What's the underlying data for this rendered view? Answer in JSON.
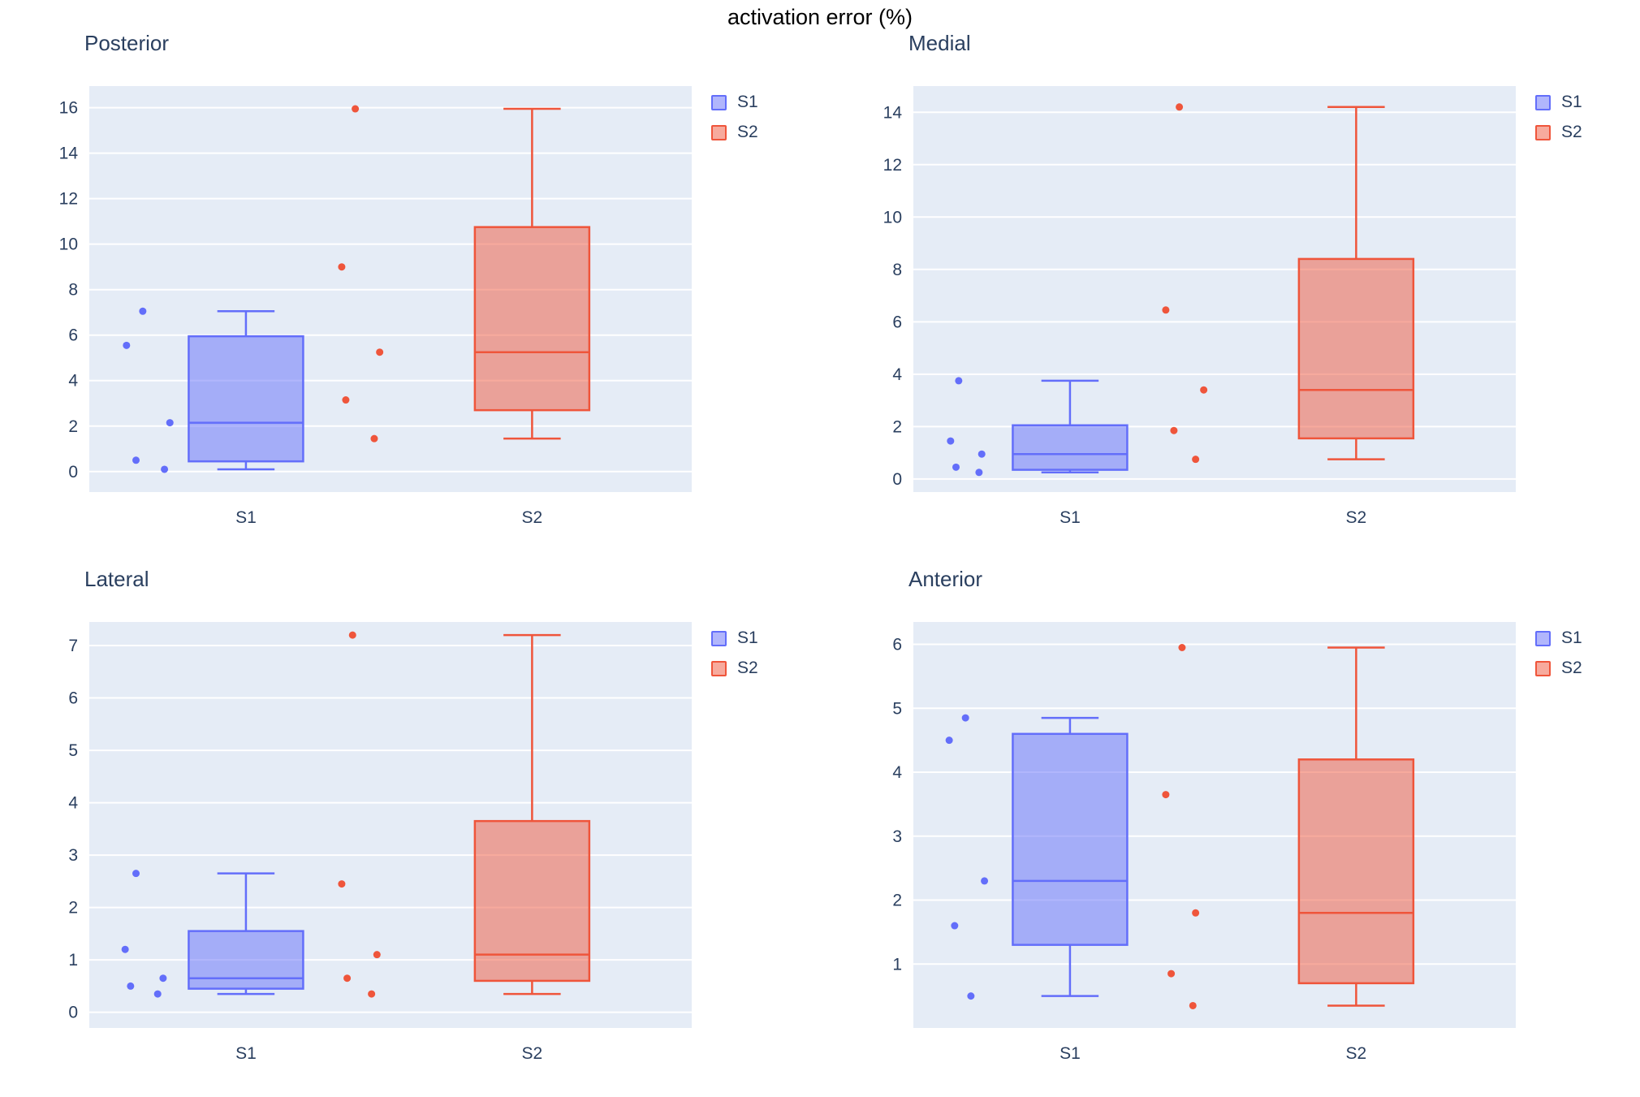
{
  "title": "activation error (%)",
  "legend": {
    "items": [
      {
        "label": "S1",
        "color": "#636EFA"
      },
      {
        "label": "S2",
        "color": "#EF553B"
      }
    ]
  },
  "colors": {
    "s1_line": "#636EFA",
    "s1_fill": "rgba(99,110,250,0.5)",
    "s2_line": "#EF553B",
    "s2_fill": "rgba(239,85,59,0.5)",
    "plot_bg": "#E5ECF6",
    "grid": "#FFFFFF",
    "text": "#2A3F5F",
    "title_text": "#000000"
  },
  "chart_data": [
    {
      "type": "box",
      "title": "Posterior",
      "categories": [
        "S1",
        "S2"
      ],
      "ylim": [
        -0.9,
        16.95
      ],
      "yticks": [
        0,
        2,
        4,
        6,
        8,
        10,
        12,
        14,
        16
      ],
      "grid": true,
      "legend_position": "right-top",
      "series": [
        {
          "name": "S1",
          "color_role": "s1",
          "box": {
            "min": 0.1,
            "q1": 0.45,
            "median": 2.15,
            "q3": 5.95,
            "max": 7.05
          },
          "points": [
            {
              "y": 7.05,
              "j": -0.25
            },
            {
              "y": 5.55,
              "j": -0.85
            },
            {
              "y": 2.15,
              "j": 0.75
            },
            {
              "y": 0.5,
              "j": -0.5
            },
            {
              "y": 0.1,
              "j": 0.55
            }
          ]
        },
        {
          "name": "S2",
          "color_role": "s2",
          "box": {
            "min": 1.45,
            "q1": 2.7,
            "median": 5.25,
            "q3": 10.75,
            "max": 15.95
          },
          "points": [
            {
              "y": 15.95,
              "j": -0.3
            },
            {
              "y": 9.0,
              "j": -0.8
            },
            {
              "y": 5.25,
              "j": 0.6
            },
            {
              "y": 3.15,
              "j": -0.65
            },
            {
              "y": 1.45,
              "j": 0.4
            }
          ]
        }
      ]
    },
    {
      "type": "box",
      "title": "Medial",
      "categories": [
        "S1",
        "S2"
      ],
      "ylim": [
        -0.5,
        15.0
      ],
      "yticks": [
        0,
        2,
        4,
        6,
        8,
        10,
        12,
        14
      ],
      "grid": true,
      "legend_position": "right-top",
      "series": [
        {
          "name": "S1",
          "color_role": "s1",
          "box": {
            "min": 0.25,
            "q1": 0.35,
            "median": 0.95,
            "q3": 2.05,
            "max": 3.75
          },
          "points": [
            {
              "y": 3.75,
              "j": -0.55
            },
            {
              "y": 1.45,
              "j": -0.85
            },
            {
              "y": 0.95,
              "j": 0.3
            },
            {
              "y": 0.45,
              "j": -0.65
            },
            {
              "y": 0.25,
              "j": 0.2
            }
          ]
        },
        {
          "name": "S2",
          "color_role": "s2",
          "box": {
            "min": 0.75,
            "q1": 1.55,
            "median": 3.4,
            "q3": 8.4,
            "max": 14.2
          },
          "points": [
            {
              "y": 14.2,
              "j": -0.3
            },
            {
              "y": 6.45,
              "j": -0.8
            },
            {
              "y": 3.4,
              "j": 0.6
            },
            {
              "y": 1.85,
              "j": -0.5
            },
            {
              "y": 0.75,
              "j": 0.3
            }
          ]
        }
      ]
    },
    {
      "type": "box",
      "title": "Lateral",
      "categories": [
        "S1",
        "S2"
      ],
      "ylim": [
        -0.3,
        7.45
      ],
      "yticks": [
        0,
        1,
        2,
        3,
        4,
        5,
        6,
        7
      ],
      "grid": true,
      "legend_position": "right-top",
      "series": [
        {
          "name": "S1",
          "color_role": "s1",
          "box": {
            "min": 0.35,
            "q1": 0.45,
            "median": 0.65,
            "q3": 1.55,
            "max": 2.65
          },
          "points": [
            {
              "y": 2.65,
              "j": -0.5
            },
            {
              "y": 1.2,
              "j": -0.9
            },
            {
              "y": 0.65,
              "j": 0.5
            },
            {
              "y": 0.5,
              "j": -0.7
            },
            {
              "y": 0.35,
              "j": 0.3
            }
          ]
        },
        {
          "name": "S2",
          "color_role": "s2",
          "box": {
            "min": 0.35,
            "q1": 0.6,
            "median": 1.1,
            "q3": 3.65,
            "max": 7.2
          },
          "points": [
            {
              "y": 7.2,
              "j": -0.4
            },
            {
              "y": 2.45,
              "j": -0.8
            },
            {
              "y": 1.1,
              "j": 0.5
            },
            {
              "y": 0.65,
              "j": -0.6
            },
            {
              "y": 0.35,
              "j": 0.3
            }
          ]
        }
      ]
    },
    {
      "type": "box",
      "title": "Anterior",
      "categories": [
        "S1",
        "S2"
      ],
      "ylim": [
        0.0,
        6.35
      ],
      "yticks": [
        1,
        2,
        3,
        4,
        5,
        6
      ],
      "grid": true,
      "legend_position": "right-top",
      "series": [
        {
          "name": "S1",
          "color_role": "s1",
          "box": {
            "min": 0.5,
            "q1": 1.3,
            "median": 2.3,
            "q3": 4.6,
            "max": 4.85
          },
          "points": [
            {
              "y": 4.85,
              "j": -0.3
            },
            {
              "y": 4.5,
              "j": -0.9
            },
            {
              "y": 2.3,
              "j": 0.4
            },
            {
              "y": 1.6,
              "j": -0.7
            },
            {
              "y": 0.5,
              "j": -0.1
            }
          ]
        },
        {
          "name": "S2",
          "color_role": "s2",
          "box": {
            "min": 0.35,
            "q1": 0.7,
            "median": 1.8,
            "q3": 4.2,
            "max": 5.95
          },
          "points": [
            {
              "y": 5.95,
              "j": -0.2
            },
            {
              "y": 3.65,
              "j": -0.8
            },
            {
              "y": 1.8,
              "j": 0.3
            },
            {
              "y": 0.85,
              "j": -0.6
            },
            {
              "y": 0.35,
              "j": 0.2
            }
          ]
        }
      ]
    }
  ]
}
